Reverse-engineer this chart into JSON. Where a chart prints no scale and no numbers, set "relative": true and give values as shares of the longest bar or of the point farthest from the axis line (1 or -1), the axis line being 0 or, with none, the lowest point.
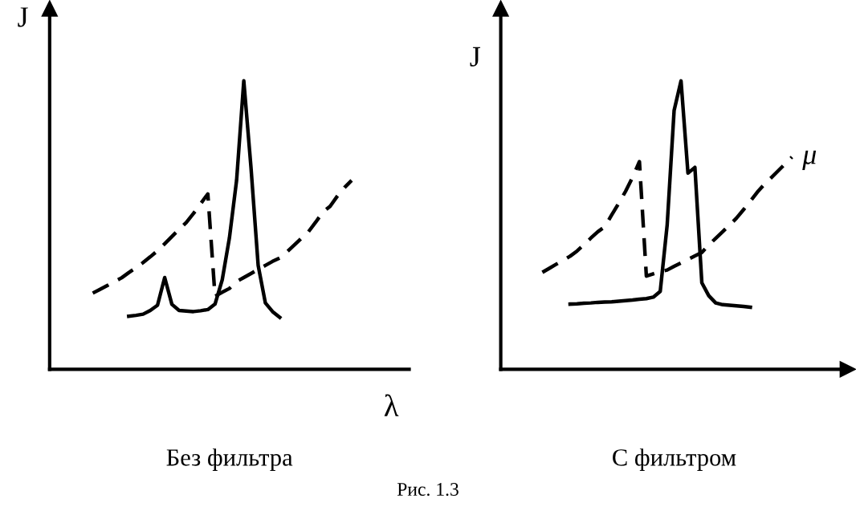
{
  "chart_data": [
    {
      "type": "line",
      "relative": true,
      "title": "Без фильтра",
      "ylabel": "J",
      "xlabel": "λ",
      "grid": false,
      "legend": false,
      "marker": "none",
      "categories": [
        null,
        null,
        null,
        null,
        null,
        null,
        null,
        null,
        null,
        null,
        null,
        null,
        null,
        null,
        null,
        null,
        null,
        null,
        null,
        null,
        null,
        null,
        null,
        null,
        null,
        null,
        null,
        null,
        null,
        null,
        null,
        null,
        null,
        null,
        null,
        null,
        null,
        null,
        null,
        null,
        null,
        null,
        null,
        null,
        null,
        null,
        null,
        null,
        null,
        null
      ],
      "series": [
        {
          "color": "#000000",
          "line_style": "solid",
          "values": [
            null,
            null,
            null,
            null,
            null,
            null,
            null,
            null,
            null,
            null,
            null,
            0.184,
            0.187,
            0.191,
            0.204,
            0.222,
            0.318,
            0.225,
            0.204,
            0.202,
            0.2,
            0.203,
            0.207,
            0.226,
            0.31,
            0.455,
            0.655,
            1,
            0.7,
            0.36,
            0.23,
            0.2,
            0.18,
            null,
            null,
            null,
            null,
            null,
            null,
            null,
            null,
            null,
            null,
            null,
            null,
            null,
            null,
            null,
            null,
            null
          ]
        },
        {
          "color": "#000000",
          "line_style": "dashed",
          "values": [
            null,
            null,
            null,
            null,
            null,
            null,
            0.264,
            0.277,
            0.29,
            0.304,
            0.317,
            0.335,
            0.352,
            0.37,
            0.39,
            0.411,
            0.435,
            0.46,
            0.485,
            0.509,
            0.54,
            0.574,
            0.608,
            0.253,
            0.267,
            0.28,
            0.304,
            0.318,
            0.332,
            0.346,
            0.36,
            0.374,
            0.386,
            0.407,
            0.43,
            0.454,
            0.477,
            0.51,
            0.545,
            0.565,
            0.6,
            0.63,
            0.655,
            null,
            null,
            null,
            null,
            null,
            null,
            null
          ]
        }
      ],
      "annotations": [
        "Рис. 1.3"
      ]
    },
    {
      "type": "line",
      "relative": true,
      "title": "С фильтром",
      "ylabel": "J",
      "grid": false,
      "legend": false,
      "marker": "none",
      "categories": [
        null,
        null,
        null,
        null,
        null,
        null,
        null,
        null,
        null,
        null,
        null,
        null,
        null,
        null,
        null,
        null,
        null,
        null,
        null,
        null,
        null,
        null,
        null,
        null,
        null,
        null,
        null,
        null,
        null,
        null,
        null,
        null,
        null,
        null,
        null,
        null,
        null,
        null,
        null,
        null,
        null,
        null,
        null,
        null,
        null,
        null,
        null,
        null,
        null,
        null
      ],
      "series": [
        {
          "color": "#000000",
          "line_style": "solid",
          "values": [
            null,
            null,
            null,
            null,
            null,
            null,
            null,
            null,
            null,
            null,
            0.226,
            0.227,
            0.229,
            0.23,
            0.232,
            0.233,
            0.234,
            0.236,
            0.238,
            0.24,
            0.243,
            0.245,
            0.25,
            0.27,
            0.5,
            0.897,
            1,
            0.68,
            0.7,
            0.3,
            0.255,
            0.23,
            0.224,
            0.222,
            0.22,
            0.218,
            0.215,
            null,
            null,
            null,
            null,
            null,
            null,
            null,
            null,
            null,
            null,
            null,
            null,
            null
          ]
        },
        {
          "name": "μ",
          "color": "#000000",
          "line_style": "dashed",
          "values": [
            null,
            null,
            null,
            null,
            null,
            null,
            0.336,
            0.35,
            0.364,
            0.378,
            0.392,
            0.41,
            0.432,
            0.455,
            0.477,
            0.494,
            0.535,
            0.575,
            0.617,
            0.665,
            0.72,
            0.323,
            0.331,
            0.339,
            0.344,
            0.357,
            0.369,
            0.381,
            0.393,
            0.405,
            0.431,
            0.454,
            0.477,
            0.5,
            0.524,
            0.553,
            0.583,
            0.614,
            0.641,
            0.664,
            0.688,
            0.712,
            0.736,
            null,
            null,
            null,
            null,
            null,
            null,
            null
          ]
        }
      ]
    }
  ]
}
